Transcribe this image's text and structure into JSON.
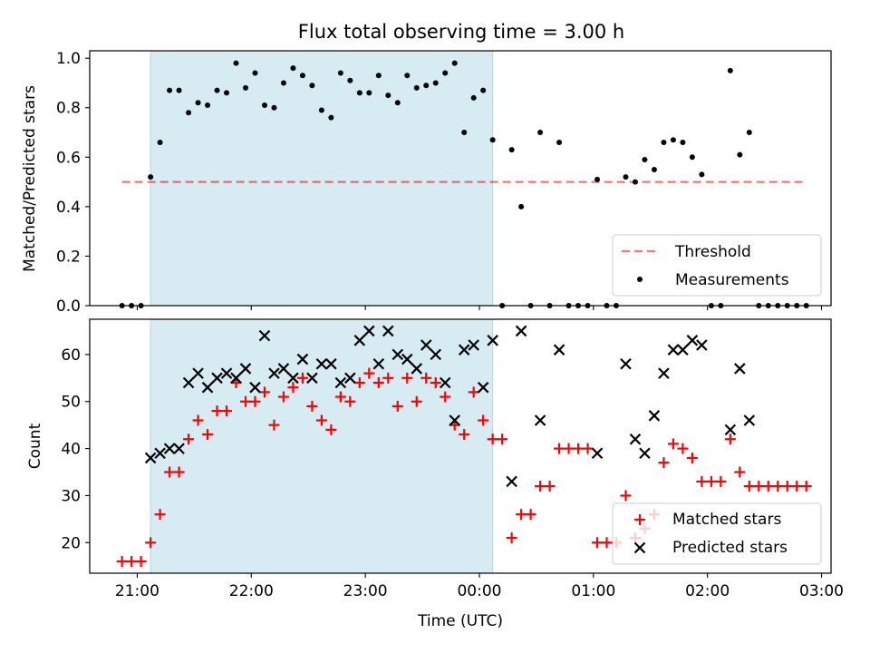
{
  "figure": {
    "title": "Flux total observing time = 3.00 h",
    "xlabel": "Time (UTC)"
  },
  "colors": {
    "shade": "#add8e6",
    "threshold": "#ff0000",
    "measurement": "#000000",
    "matched": "#ff0000",
    "predicted": "#000000"
  },
  "chart_data": [
    {
      "type": "scatter",
      "panel": "top",
      "ylabel": "Matched/Predicted stars",
      "xlim": [
        "20:35",
        "03:05"
      ],
      "ylim": [
        0,
        1.03
      ],
      "xticks": [
        "21:00",
        "22:00",
        "23:00",
        "00:00",
        "01:00",
        "02:00",
        "03:00"
      ],
      "yticks": [
        "0.0",
        "0.2",
        "0.4",
        "0.6",
        "0.8",
        "1.0"
      ],
      "shaded_interval": [
        "21:07",
        "00:07"
      ],
      "threshold": {
        "name": "Threshold",
        "y": 0.5,
        "x_range": [
          "20:52",
          "02:50"
        ]
      },
      "legend_position": "lower right",
      "series": [
        {
          "name": "Measurements",
          "points": [
            [
              "20:52",
              0
            ],
            [
              "20:57",
              0
            ],
            [
              "21:02",
              0
            ],
            [
              "21:07",
              0.52
            ],
            [
              "21:12",
              0.66
            ],
            [
              "21:17",
              0.87
            ],
            [
              "21:22",
              0.87
            ],
            [
              "21:27",
              0.78
            ],
            [
              "21:32",
              0.82
            ],
            [
              "21:37",
              0.81
            ],
            [
              "21:42",
              0.87
            ],
            [
              "21:47",
              0.86
            ],
            [
              "21:52",
              0.98
            ],
            [
              "21:57",
              0.88
            ],
            [
              "22:02",
              0.94
            ],
            [
              "22:07",
              0.81
            ],
            [
              "22:12",
              0.8
            ],
            [
              "22:17",
              0.9
            ],
            [
              "22:22",
              0.96
            ],
            [
              "22:27",
              0.93
            ],
            [
              "22:32",
              0.89
            ],
            [
              "22:37",
              0.79
            ],
            [
              "22:42",
              0.76
            ],
            [
              "22:47",
              0.94
            ],
            [
              "22:52",
              0.91
            ],
            [
              "22:57",
              0.86
            ],
            [
              "23:02",
              0.86
            ],
            [
              "23:07",
              0.93
            ],
            [
              "23:12",
              0.85
            ],
            [
              "23:17",
              0.82
            ],
            [
              "23:22",
              0.93
            ],
            [
              "23:27",
              0.88
            ],
            [
              "23:32",
              0.89
            ],
            [
              "23:37",
              0.9
            ],
            [
              "23:42",
              0.94
            ],
            [
              "23:47",
              0.98
            ],
            [
              "23:52",
              0.7
            ],
            [
              "23:57",
              0.84
            ],
            [
              "00:02",
              0.87
            ],
            [
              "00:07",
              0.67
            ],
            [
              "00:12",
              0
            ],
            [
              "00:17",
              0.63
            ],
            [
              "00:22",
              0.4
            ],
            [
              "00:27",
              0
            ],
            [
              "00:32",
              0.7
            ],
            [
              "00:37",
              0
            ],
            [
              "00:42",
              0.66
            ],
            [
              "00:47",
              0
            ],
            [
              "00:52",
              0
            ],
            [
              "00:57",
              0
            ],
            [
              "01:02",
              0.51
            ],
            [
              "01:07",
              0
            ],
            [
              "01:12",
              0
            ],
            [
              "01:17",
              0.52
            ],
            [
              "01:22",
              0.5
            ],
            [
              "01:27",
              0.59
            ],
            [
              "01:32",
              0.55
            ],
            [
              "01:37",
              0.66
            ],
            [
              "01:42",
              0.67
            ],
            [
              "01:47",
              0.66
            ],
            [
              "01:52",
              0.6
            ],
            [
              "01:57",
              0.53
            ],
            [
              "02:02",
              0
            ],
            [
              "02:07",
              0
            ],
            [
              "02:12",
              0.95
            ],
            [
              "02:17",
              0.61
            ],
            [
              "02:22",
              0.7
            ],
            [
              "02:27",
              0
            ],
            [
              "02:32",
              0
            ],
            [
              "02:37",
              0
            ],
            [
              "02:42",
              0
            ],
            [
              "02:47",
              0
            ],
            [
              "02:52",
              0
            ]
          ]
        }
      ]
    },
    {
      "type": "scatter",
      "panel": "bottom",
      "ylabel": "Count",
      "xlim": [
        "20:35",
        "03:05"
      ],
      "ylim": [
        13.5,
        67.5
      ],
      "xticks": [
        "21:00",
        "22:00",
        "23:00",
        "00:00",
        "01:00",
        "02:00",
        "03:00"
      ],
      "yticks": [
        "20",
        "30",
        "40",
        "50",
        "60"
      ],
      "shaded_interval": [
        "21:07",
        "00:07"
      ],
      "legend_position": "lower right",
      "series": [
        {
          "name": "Matched stars",
          "points": [
            [
              "20:52",
              16
            ],
            [
              "20:57",
              16
            ],
            [
              "21:02",
              16
            ],
            [
              "21:07",
              20
            ],
            [
              "21:12",
              26
            ],
            [
              "21:17",
              35
            ],
            [
              "21:22",
              35
            ],
            [
              "21:27",
              42
            ],
            [
              "21:32",
              46
            ],
            [
              "21:37",
              43
            ],
            [
              "21:42",
              48
            ],
            [
              "21:47",
              48
            ],
            [
              "21:52",
              54
            ],
            [
              "21:57",
              50
            ],
            [
              "22:02",
              50
            ],
            [
              "22:07",
              52
            ],
            [
              "22:12",
              45
            ],
            [
              "22:17",
              51
            ],
            [
              "22:22",
              53
            ],
            [
              "22:27",
              55
            ],
            [
              "22:32",
              49
            ],
            [
              "22:37",
              46
            ],
            [
              "22:42",
              44
            ],
            [
              "22:47",
              51
            ],
            [
              "22:52",
              50
            ],
            [
              "22:57",
              54
            ],
            [
              "23:02",
              56
            ],
            [
              "23:07",
              54
            ],
            [
              "23:12",
              55
            ],
            [
              "23:17",
              49
            ],
            [
              "23:22",
              55
            ],
            [
              "23:27",
              50
            ],
            [
              "23:32",
              55
            ],
            [
              "23:37",
              54
            ],
            [
              "23:42",
              51
            ],
            [
              "23:47",
              45
            ],
            [
              "23:52",
              43
            ],
            [
              "23:57",
              52
            ],
            [
              "00:02",
              46
            ],
            [
              "00:07",
              42
            ],
            [
              "00:12",
              42
            ],
            [
              "00:17",
              21
            ],
            [
              "00:22",
              26
            ],
            [
              "00:27",
              26
            ],
            [
              "00:32",
              32
            ],
            [
              "00:37",
              32
            ],
            [
              "00:42",
              40
            ],
            [
              "00:47",
              40
            ],
            [
              "00:52",
              40
            ],
            [
              "00:57",
              40
            ],
            [
              "01:02",
              20
            ],
            [
              "01:07",
              20
            ],
            [
              "01:12",
              20
            ],
            [
              "01:17",
              30
            ],
            [
              "01:22",
              21
            ],
            [
              "01:27",
              23
            ],
            [
              "01:32",
              26
            ],
            [
              "01:37",
              37
            ],
            [
              "01:42",
              41
            ],
            [
              "01:47",
              40
            ],
            [
              "01:52",
              38
            ],
            [
              "01:57",
              33
            ],
            [
              "02:02",
              33
            ],
            [
              "02:07",
              33
            ],
            [
              "02:12",
              42
            ],
            [
              "02:17",
              35
            ],
            [
              "02:22",
              32
            ],
            [
              "02:27",
              32
            ],
            [
              "02:32",
              32
            ],
            [
              "02:37",
              32
            ],
            [
              "02:42",
              32
            ],
            [
              "02:47",
              32
            ],
            [
              "02:52",
              32
            ]
          ]
        },
        {
          "name": "Predicted stars",
          "points": [
            [
              "21:07",
              38
            ],
            [
              "21:12",
              39
            ],
            [
              "21:17",
              40
            ],
            [
              "21:22",
              40
            ],
            [
              "21:27",
              54
            ],
            [
              "21:32",
              56
            ],
            [
              "21:37",
              53
            ],
            [
              "21:42",
              55
            ],
            [
              "21:47",
              56
            ],
            [
              "21:52",
              55
            ],
            [
              "21:57",
              57
            ],
            [
              "22:02",
              53
            ],
            [
              "22:07",
              64
            ],
            [
              "22:12",
              56
            ],
            [
              "22:17",
              57
            ],
            [
              "22:22",
              55
            ],
            [
              "22:27",
              59
            ],
            [
              "22:32",
              55
            ],
            [
              "22:37",
              58
            ],
            [
              "22:42",
              58
            ],
            [
              "22:47",
              54
            ],
            [
              "22:52",
              55
            ],
            [
              "22:57",
              63
            ],
            [
              "23:02",
              65
            ],
            [
              "23:07",
              58
            ],
            [
              "23:12",
              65
            ],
            [
              "23:17",
              60
            ],
            [
              "23:22",
              59
            ],
            [
              "23:27",
              57
            ],
            [
              "23:32",
              62
            ],
            [
              "23:37",
              60
            ],
            [
              "23:42",
              54
            ],
            [
              "23:47",
              46
            ],
            [
              "23:52",
              61
            ],
            [
              "23:57",
              62
            ],
            [
              "00:02",
              53
            ],
            [
              "00:07",
              63
            ],
            [
              "00:17",
              33
            ],
            [
              "00:22",
              65
            ],
            [
              "00:32",
              46
            ],
            [
              "00:42",
              61
            ],
            [
              "01:02",
              39
            ],
            [
              "01:17",
              58
            ],
            [
              "01:22",
              42
            ],
            [
              "01:27",
              39
            ],
            [
              "01:32",
              47
            ],
            [
              "01:37",
              56
            ],
            [
              "01:42",
              61
            ],
            [
              "01:47",
              61
            ],
            [
              "01:52",
              63
            ],
            [
              "01:57",
              62
            ],
            [
              "02:12",
              44
            ],
            [
              "02:17",
              57
            ],
            [
              "02:22",
              46
            ]
          ]
        }
      ]
    }
  ]
}
